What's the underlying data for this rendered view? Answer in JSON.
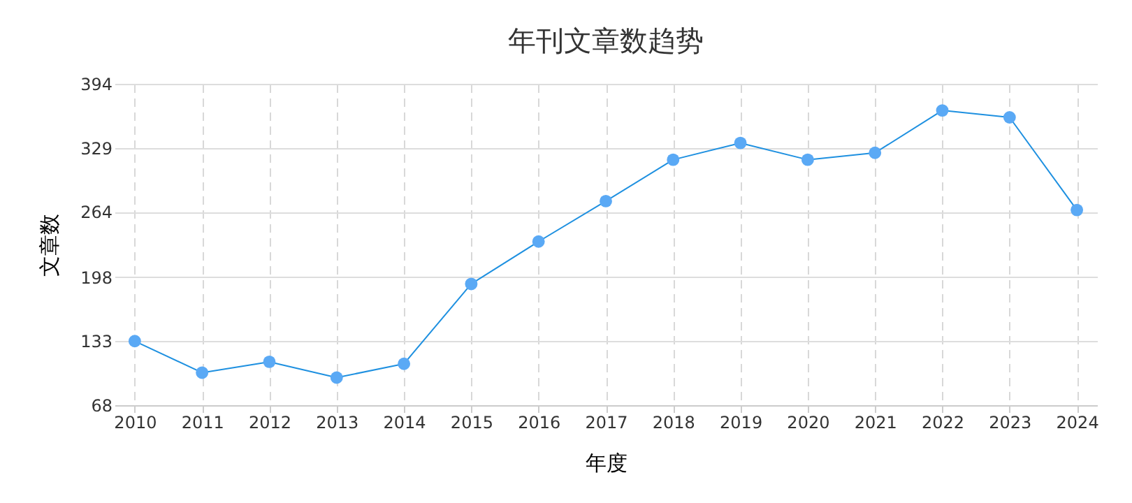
{
  "chart_data": {
    "type": "line",
    "title": "年刊文章数趋势",
    "xlabel": "年度",
    "ylabel": "文章数",
    "categories": [
      "2010",
      "2011",
      "2012",
      "2013",
      "2014",
      "2015",
      "2016",
      "2017",
      "2018",
      "2019",
      "2020",
      "2021",
      "2022",
      "2023",
      "2024"
    ],
    "series": [
      {
        "color": "#1e90e0",
        "values": [
          133,
          101,
          112,
          96,
          110,
          191,
          234,
          275,
          317,
          334,
          317,
          324,
          367,
          360,
          266
        ]
      }
    ],
    "ylim": [
      68,
      394
    ],
    "yticks": [
      68,
      133,
      198,
      264,
      329,
      394
    ],
    "grid": true,
    "marker": "circle",
    "line_style": "solid"
  }
}
